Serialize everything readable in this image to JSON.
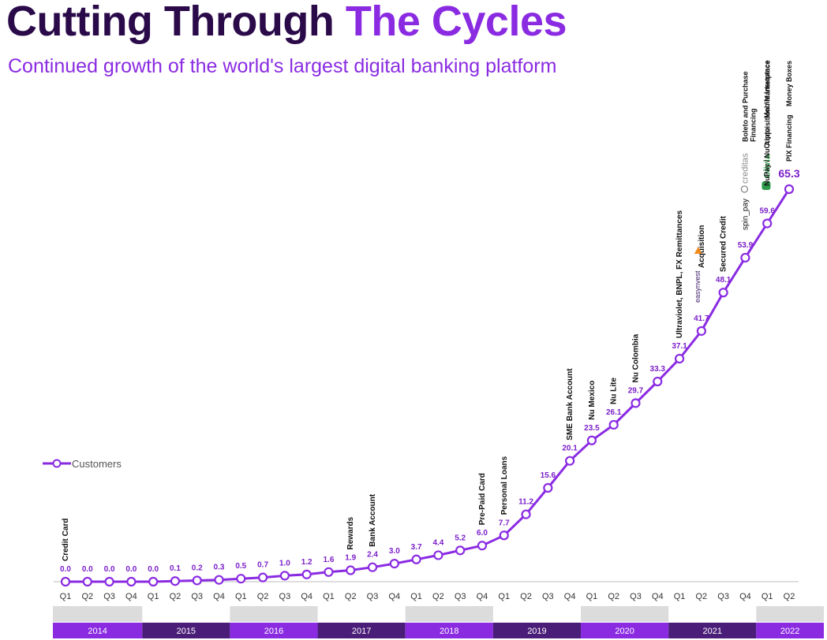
{
  "title": {
    "part1": "Cutting Through",
    "part2": "The Cycles"
  },
  "subtitle": "Continued growth of the world's largest digital banking platform",
  "colors": {
    "title_dark": "#2b0a4a",
    "accent": "#8a2be2",
    "value_label": "#7a1fc9",
    "year_band_dark": "#4a1d78",
    "year_band_light": "#8a2be2",
    "year_band_text": "#ffffff",
    "axis_band_gray": "#dcdcdc",
    "creditas_gray": "#8a8a8a",
    "olivia_green": "#2e9b4b",
    "easynvest_orange": "#f08a1c"
  },
  "chart_data": {
    "type": "line",
    "series": [
      {
        "name": "Customers",
        "values": [
          0.0,
          0.0,
          0.0,
          0.0,
          0.0,
          0.1,
          0.2,
          0.3,
          0.5,
          0.7,
          1.0,
          1.2,
          1.6,
          1.9,
          2.4,
          3.0,
          3.7,
          4.4,
          5.2,
          6.0,
          7.7,
          11.2,
          15.6,
          20.1,
          23.5,
          26.1,
          29.7,
          33.3,
          37.1,
          41.7,
          48.1,
          53.9,
          59.6,
          65.3
        ],
        "value_labels": [
          "0.0",
          "0.0",
          "0.0",
          "0.0",
          "0.0",
          "0.1",
          "0.2",
          "0.3",
          "0.5",
          "0.7",
          "1.0",
          "1.2",
          "1.6",
          "1.9",
          "2.4",
          "3.0",
          "3.7",
          "4.4",
          "5.2",
          "6.0",
          "7.7",
          "11.2",
          "15.6",
          "20.1",
          "23.5",
          "26.1",
          "29.7",
          "33.3",
          "37.1",
          "41.7",
          "48.1",
          "53.9",
          "59.6",
          "65.3"
        ]
      }
    ],
    "quarters": [
      "Q1",
      "Q2",
      "Q3",
      "Q4",
      "Q1",
      "Q2",
      "Q3",
      "Q4",
      "Q1",
      "Q2",
      "Q3",
      "Q4",
      "Q1",
      "Q2",
      "Q3",
      "Q4",
      "Q1",
      "Q2",
      "Q3",
      "Q4",
      "Q1",
      "Q2",
      "Q3",
      "Q4",
      "Q1",
      "Q2",
      "Q3",
      "Q4",
      "Q1",
      "Q2",
      "Q3",
      "Q4",
      "Q1",
      "Q2"
    ],
    "years": [
      {
        "label": "2014",
        "start": 0,
        "end": 3
      },
      {
        "label": "2015",
        "start": 4,
        "end": 7
      },
      {
        "label": "2016",
        "start": 8,
        "end": 11
      },
      {
        "label": "2017",
        "start": 12,
        "end": 15
      },
      {
        "label": "2018",
        "start": 16,
        "end": 19
      },
      {
        "label": "2019",
        "start": 20,
        "end": 23
      },
      {
        "label": "2020",
        "start": 24,
        "end": 27
      },
      {
        "label": "2021",
        "start": 28,
        "end": 31
      },
      {
        "label": "2022",
        "start": 32,
        "end": 33
      }
    ],
    "annotations": [
      {
        "index": 0,
        "lines": [
          "Credit Card"
        ]
      },
      {
        "index": 13,
        "lines": [
          "Rewards"
        ]
      },
      {
        "index": 14,
        "lines": [
          "Bank Account"
        ]
      },
      {
        "index": 19,
        "lines": [
          "Pre-Paid Card"
        ]
      },
      {
        "index": 20,
        "lines": [
          "Personal Loans"
        ]
      },
      {
        "index": 23,
        "lines": [
          "SME Bank Account"
        ]
      },
      {
        "index": 24,
        "lines": [
          "Nu Mexico"
        ]
      },
      {
        "index": 25,
        "lines": [
          "Nu Lite"
        ]
      },
      {
        "index": 26,
        "lines": [
          "Nu Colombia"
        ]
      },
      {
        "index": 28,
        "lines": [
          "Ultraviolet, BNPL, FX Remittances"
        ]
      },
      {
        "index": 29,
        "lines": [
          "Acquisition"
        ],
        "logo": "easynvest",
        "logo_icon": "easynvest-logo-icon"
      },
      {
        "index": 30,
        "lines": [
          "Secured Credit"
        ]
      },
      {
        "index": 31,
        "lines": [
          "spin_pay"
        ],
        "logo": "creditas",
        "logo_icon": "creditas-logo-icon",
        "extra_lines": [
          "Boleto and Purchase",
          "Financing"
        ]
      },
      {
        "index": 31,
        "lines": [
          "Acquisition / Marketplace"
        ],
        "logo": "Olivia",
        "logo_icon": "olivia-logo-icon",
        "column_offset": 1
      },
      {
        "index": 32,
        "lines": [
          "NuPay / NuCripto"
        ],
        "extra_lines": [
          "Mobile Insurance"
        ]
      },
      {
        "index": 33,
        "lines": [
          "PIX Financing"
        ],
        "extra_lines": [
          "Money Boxes"
        ]
      }
    ],
    "ylim": [
      0,
      70
    ],
    "grid": false,
    "legend": "left-middle"
  }
}
